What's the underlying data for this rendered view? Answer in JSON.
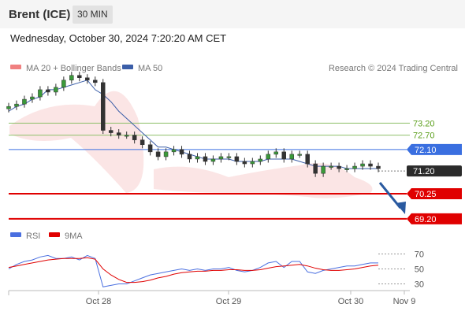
{
  "header": {
    "instrument": "Brent (ICE)",
    "timeframe": "30 MIN"
  },
  "datetime": "Wednesday, October 30, 2024 7:20:20 AM CET",
  "legend": {
    "ma_bb": "MA 20 + Bollinger Bands",
    "ma50": "MA 50",
    "credit": "Research © 2024 Trading Central"
  },
  "rsi_legend": {
    "rsi": "RSI",
    "ma9": "9MA"
  },
  "colors": {
    "ma_bb": "#f08080",
    "ma50": "#3b5ea8",
    "resistance": "#5a9e1a",
    "support": "#e00000",
    "pivot": "#3a6fe0",
    "current": "#2b2b2b",
    "arrow": "#2a5aa0",
    "rsi": "#4a6fe0",
    "rsi_ma": "#e00000"
  },
  "chart_data": {
    "type": "line",
    "series_type": "candlestick",
    "x_ticks": [
      "Oct 28",
      "Oct 29",
      "Oct 30",
      "Nov 9"
    ],
    "y_range": [
      68.8,
      74.4
    ],
    "levels": [
      {
        "label": "73.20",
        "value": 73.2,
        "kind": "resistance"
      },
      {
        "label": "72.70",
        "value": 72.7,
        "kind": "resistance"
      },
      {
        "label": "72.10",
        "value": 72.1,
        "kind": "pivot"
      },
      {
        "label": "71.20",
        "value": 71.2,
        "kind": "current"
      },
      {
        "label": "70.25",
        "value": 70.25,
        "kind": "support"
      },
      {
        "label": "69.20",
        "value": 69.2,
        "kind": "support"
      }
    ],
    "price_close": [
      73.9,
      74.0,
      74.2,
      74.3,
      74.6,
      74.5,
      74.7,
      75.0,
      75.2,
      75.1,
      75.0,
      74.9,
      72.9,
      72.8,
      72.7,
      72.7,
      72.5,
      72.3,
      72.0,
      71.8,
      72.0,
      72.1,
      71.9,
      71.7,
      71.8,
      71.6,
      71.7,
      71.8,
      71.8,
      71.6,
      71.5,
      71.6,
      71.7,
      71.9,
      72.0,
      71.7,
      71.9,
      71.9,
      71.5,
      71.1,
      71.4,
      71.4,
      71.3,
      71.3,
      71.4,
      71.5,
      71.4,
      71.3
    ],
    "ma50": [
      73.7,
      73.9,
      74.0,
      74.2,
      74.3,
      74.6,
      74.6,
      74.7,
      74.8,
      74.9,
      75.0,
      74.6,
      74.4,
      74.1,
      73.7,
      73.4,
      73.1,
      72.8,
      72.5,
      72.2,
      72.2,
      72.1,
      72.0,
      71.9,
      71.8,
      71.7,
      71.7,
      71.7,
      71.7,
      71.6,
      71.6,
      71.6,
      71.6,
      71.7,
      71.7,
      71.7,
      71.7,
      71.6,
      71.5,
      71.4,
      71.4,
      71.4,
      71.4,
      71.3,
      71.3,
      71.3,
      71.3,
      71.3
    ],
    "rsi_ticks": [
      "70",
      "50",
      "30"
    ],
    "rsi_range": [
      20,
      80
    ],
    "rsi": [
      50,
      56,
      60,
      62,
      66,
      68,
      64,
      64,
      66,
      62,
      68,
      64,
      26,
      28,
      30,
      30,
      34,
      38,
      42,
      44,
      46,
      48,
      50,
      48,
      50,
      48,
      50,
      50,
      52,
      48,
      46,
      48,
      52,
      58,
      60,
      52,
      60,
      60,
      46,
      44,
      48,
      50,
      52,
      54,
      54,
      56,
      58,
      58
    ],
    "rsi_ma": [
      52,
      54,
      56,
      58,
      60,
      62,
      63,
      64,
      64,
      64,
      65,
      63,
      50,
      42,
      36,
      32,
      32,
      33,
      35,
      38,
      40,
      43,
      45,
      46,
      47,
      47,
      48,
      48,
      49,
      49,
      48,
      48,
      49,
      51,
      53,
      54,
      55,
      56,
      54,
      51,
      49,
      48,
      48,
      49,
      50,
      52,
      54,
      55
    ]
  }
}
